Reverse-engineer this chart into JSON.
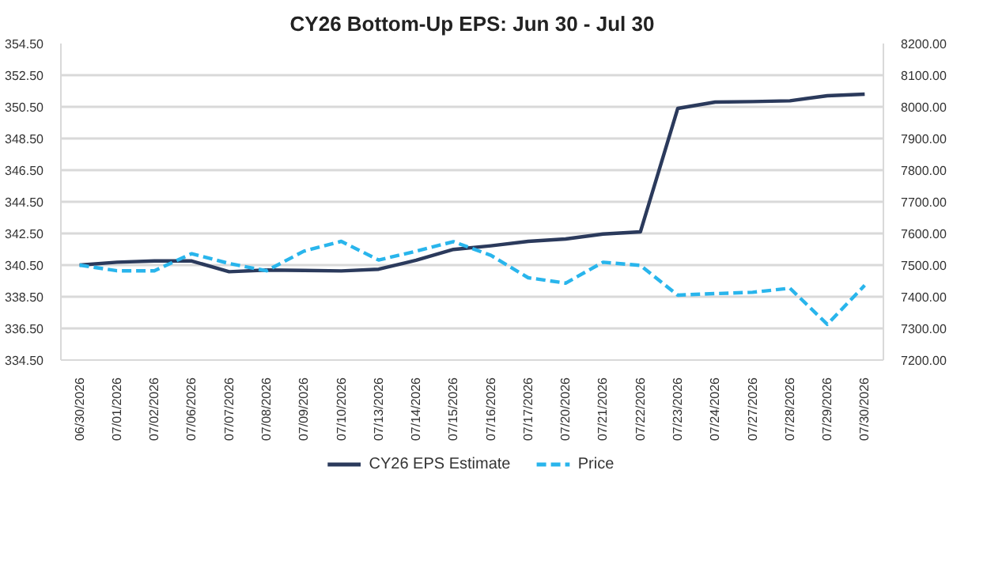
{
  "chart_data": {
    "type": "line",
    "title": "CY26 Bottom-Up EPS: Jun 30 - Jul 30",
    "categories": [
      "06/30/2026",
      "07/01/2026",
      "07/02/2026",
      "07/06/2026",
      "07/07/2026",
      "07/08/2026",
      "07/09/2026",
      "07/10/2026",
      "07/13/2026",
      "07/14/2026",
      "07/15/2026",
      "07/16/2026",
      "07/17/2026",
      "07/20/2026",
      "07/21/2026",
      "07/22/2026",
      "07/23/2026",
      "07/24/2026",
      "07/27/2026",
      "07/28/2026",
      "07/29/2026",
      "07/30/2026"
    ],
    "series": [
      {
        "name": "CY26 EPS Estimate",
        "color": "#2b3a5c",
        "line_style": "solid",
        "values": [
          340.5,
          340.68,
          340.76,
          340.76,
          340.08,
          340.19,
          340.16,
          340.13,
          340.24,
          340.81,
          341.49,
          341.72,
          342.0,
          342.15,
          342.46,
          342.6,
          350.4,
          350.8,
          350.83,
          350.88,
          351.2,
          351.3
        ]
      },
      {
        "name": "Price",
        "color": "#29b5ec",
        "line_style": "dashed",
        "axis": "y2",
        "values": [
          7500,
          7482,
          7482,
          7536,
          7505,
          7482,
          7544,
          7575,
          7516,
          7544,
          7574,
          7531,
          7460,
          7443,
          7509,
          7499,
          7405,
          7410,
          7414,
          7427,
          7313,
          7436
        ]
      }
    ],
    "ylim": [
      334.5,
      354.5
    ],
    "yticks": [
      {
        "value": 334.5,
        "label": "334.50"
      },
      {
        "value": 336.5,
        "label": "336.50"
      },
      {
        "value": 338.5,
        "label": "338.50"
      },
      {
        "value": 340.5,
        "label": "340.50"
      },
      {
        "value": 342.5,
        "label": "342.50"
      },
      {
        "value": 344.5,
        "label": "344.50"
      },
      {
        "value": 346.5,
        "label": "346.50"
      },
      {
        "value": 348.5,
        "label": "348.50"
      },
      {
        "value": 350.5,
        "label": "350.50"
      },
      {
        "value": 352.5,
        "label": "352.50"
      },
      {
        "value": 354.5,
        "label": "354.50"
      }
    ],
    "y2lim": [
      7200,
      8200
    ],
    "y2ticks": [
      {
        "value": 7200,
        "label": "7200.00"
      },
      {
        "value": 7300,
        "label": "7300.00"
      },
      {
        "value": 7400,
        "label": "7400.00"
      },
      {
        "value": 7500,
        "label": "7500.00"
      },
      {
        "value": 7600,
        "label": "7600.00"
      },
      {
        "value": 7700,
        "label": "7700.00"
      },
      {
        "value": 7800,
        "label": "7800.00"
      },
      {
        "value": 7900,
        "label": "7900.00"
      },
      {
        "value": 8000,
        "label": "8000.00"
      },
      {
        "value": 8100,
        "label": "8100.00"
      },
      {
        "value": 8200,
        "label": "8200.00"
      }
    ],
    "grid": "y",
    "legend": "bottom",
    "marker": "none"
  }
}
